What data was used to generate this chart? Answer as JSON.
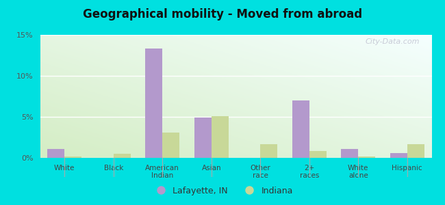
{
  "title": "Geographical mobility - Moved from abroad",
  "categories": [
    "White",
    "Black",
    "American\nIndian",
    "Asian",
    "Other\nrace",
    "2+\nraces",
    "White\nalone",
    "Hispanic"
  ],
  "lafayette_values": [
    1.1,
    0.0,
    13.3,
    4.9,
    0.0,
    7.0,
    1.1,
    0.6
  ],
  "indiana_values": [
    0.2,
    0.5,
    3.1,
    5.1,
    1.7,
    0.8,
    0.2,
    1.7
  ],
  "lafayette_color": "#b399cc",
  "indiana_color": "#c8d898",
  "bar_width": 0.35,
  "ylim": [
    0,
    15
  ],
  "yticks": [
    0,
    5,
    10,
    15
  ],
  "yticklabels": [
    "0%",
    "5%",
    "10%",
    "15%"
  ],
  "bg_color_left": "#d4edc4",
  "bg_color_right": "#eef8f8",
  "bg_color_bottom": "#daf0d0",
  "bg_color_topleft": "#daeeda",
  "outer_bg": "#00e0e0",
  "legend_lafayette": "Lafayette, IN",
  "legend_indiana": "Indiana",
  "watermark": "City-Data.com"
}
